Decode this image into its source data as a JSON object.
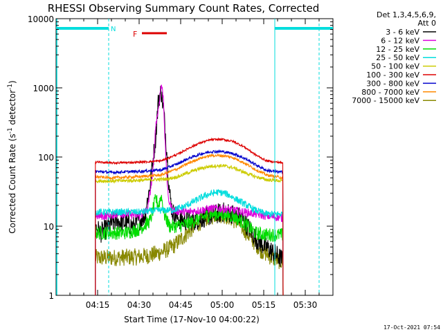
{
  "chart_data": {
    "type": "line",
    "title": "RHESSI Observing Summary Count Rates, Corrected",
    "xlabel": "Start Time (17-Nov-10 04:00:22)",
    "ylabel": "Corrected Count Rate (s^-1 detector^-1)",
    "ylabel_parts": {
      "main": "Corrected Count Rate (s",
      "exp1": "-1",
      "mid": " detector",
      "exp2": "-1",
      "end": ")"
    },
    "yscale": "log",
    "ylim": [
      1,
      10000
    ],
    "xlim_minutes": [
      0,
      100
    ],
    "x_ticks": [
      {
        "label": "04:15",
        "m": 15
      },
      {
        "label": "04:30",
        "m": 30
      },
      {
        "label": "04:45",
        "m": 45
      },
      {
        "label": "05:00",
        "m": 60
      },
      {
        "label": "05:15",
        "m": 75
      },
      {
        "label": "05:30",
        "m": 90
      }
    ],
    "y_ticks": [
      {
        "label": "1",
        "v": 1
      },
      {
        "label": "10",
        "v": 10
      },
      {
        "label": "100",
        "v": 100
      },
      {
        "label": "1000",
        "v": 1000
      },
      {
        "label": "10000",
        "v": 10000
      }
    ],
    "legend": {
      "header1": "Det 1,3,4,5,6,9,",
      "header2": "Att 0",
      "entries": [
        {
          "label": "3 - 6 keV",
          "color": "#000000"
        },
        {
          "label": "6 - 12 keV",
          "color": "#dd00dd"
        },
        {
          "label": "12 - 25 keV",
          "color": "#00dd00"
        },
        {
          "label": "25 - 50 keV",
          "color": "#00dddd"
        },
        {
          "label": "50 - 100 keV",
          "color": "#cccc00"
        },
        {
          "label": "100 - 300 keV",
          "color": "#dd0000"
        },
        {
          "label": "300 - 800 keV",
          "color": "#0000cc"
        },
        {
          "label": "800 - 7000 keV",
          "color": "#ff8800"
        },
        {
          "label": "7000 - 15000 keV",
          "color": "#888800"
        }
      ]
    },
    "annotations": {
      "night_label": "N",
      "flare_label": "F",
      "flare_color": "#dd0000",
      "night_color": "#00dddd",
      "night_bars_minutes": [
        [
          0,
          19
        ],
        [
          79,
          100
        ]
      ],
      "night_lines_minutes": [
        19,
        79,
        95
      ],
      "saa_line_minutes": 0,
      "flare_bar_minutes": [
        31,
        40
      ],
      "timestamp": "17-Oct-2021 07:54"
    },
    "series": [
      {
        "name": "3 - 6 keV",
        "color": "#000000",
        "points": [
          [
            14.2,
            10
          ],
          [
            16,
            8
          ],
          [
            18,
            9
          ],
          [
            20,
            11
          ],
          [
            22,
            12
          ],
          [
            25,
            11
          ],
          [
            28,
            10
          ],
          [
            30,
            12
          ],
          [
            32,
            14
          ],
          [
            34,
            40
          ],
          [
            36,
            200
          ],
          [
            37,
            700
          ],
          [
            38,
            900
          ],
          [
            39,
            400
          ],
          [
            40,
            120
          ],
          [
            41,
            30
          ],
          [
            42,
            16
          ],
          [
            45,
            12
          ],
          [
            50,
            12
          ],
          [
            55,
            14
          ],
          [
            58,
            15
          ],
          [
            61,
            16
          ],
          [
            64,
            15
          ],
          [
            67,
            13
          ],
          [
            70,
            9
          ],
          [
            73,
            6
          ],
          [
            76,
            5
          ],
          [
            79,
            4
          ],
          [
            82,
            3.2
          ]
        ],
        "amp": 0.3
      },
      {
        "name": "6 - 12 keV",
        "color": "#dd00dd",
        "points": [
          [
            14.2,
            14
          ],
          [
            18,
            14
          ],
          [
            22,
            15
          ],
          [
            26,
            15
          ],
          [
            30,
            14
          ],
          [
            33,
            17
          ],
          [
            35,
            60
          ],
          [
            36,
            300
          ],
          [
            37,
            500
          ],
          [
            38,
            1150
          ],
          [
            38.8,
            700
          ],
          [
            39.5,
            120
          ],
          [
            40.5,
            25
          ],
          [
            42,
            17
          ],
          [
            47,
            16
          ],
          [
            52,
            17
          ],
          [
            56,
            18
          ],
          [
            60,
            18
          ],
          [
            64,
            17
          ],
          [
            68,
            16
          ],
          [
            72,
            15
          ],
          [
            76,
            14
          ],
          [
            80,
            13.5
          ],
          [
            82,
            13
          ]
        ],
        "amp": 0.12
      },
      {
        "name": "12 - 25 keV",
        "color": "#00dd00",
        "points": [
          [
            14.2,
            8
          ],
          [
            18,
            8
          ],
          [
            25,
            8
          ],
          [
            30,
            9
          ],
          [
            34,
            12
          ],
          [
            36,
            25
          ],
          [
            37,
            20
          ],
          [
            38,
            28
          ],
          [
            39,
            15
          ],
          [
            41,
            10
          ],
          [
            44,
            10
          ],
          [
            48,
            11
          ],
          [
            52,
            13
          ],
          [
            56,
            15
          ],
          [
            60,
            15
          ],
          [
            64,
            14
          ],
          [
            68,
            11
          ],
          [
            72,
            8
          ],
          [
            76,
            7.5
          ],
          [
            82,
            7.5
          ]
        ],
        "amp": 0.2
      },
      {
        "name": "25 - 50 keV",
        "color": "#00dddd",
        "points": [
          [
            14.2,
            16
          ],
          [
            20,
            16
          ],
          [
            30,
            16
          ],
          [
            38,
            17
          ],
          [
            42,
            17
          ],
          [
            46,
            19
          ],
          [
            50,
            23
          ],
          [
            54,
            28
          ],
          [
            58,
            31
          ],
          [
            61,
            30
          ],
          [
            64,
            26
          ],
          [
            68,
            21
          ],
          [
            72,
            17
          ],
          [
            76,
            15
          ],
          [
            82,
            15
          ]
        ],
        "amp": 0.1
      },
      {
        "name": "50 - 100 keV",
        "color": "#cccc00",
        "points": [
          [
            14.2,
            45
          ],
          [
            20,
            45
          ],
          [
            30,
            46
          ],
          [
            40,
            48
          ],
          [
            44,
            52
          ],
          [
            48,
            60
          ],
          [
            52,
            68
          ],
          [
            56,
            74
          ],
          [
            60,
            75
          ],
          [
            64,
            70
          ],
          [
            68,
            60
          ],
          [
            72,
            52
          ],
          [
            76,
            47
          ],
          [
            82,
            45
          ]
        ],
        "amp": 0.05
      },
      {
        "name": "100 - 300 keV",
        "color": "#dd0000",
        "points": [
          [
            14.2,
            85
          ],
          [
            20,
            82
          ],
          [
            30,
            84
          ],
          [
            38,
            88
          ],
          [
            44,
            110
          ],
          [
            48,
            135
          ],
          [
            52,
            160
          ],
          [
            56,
            178
          ],
          [
            60,
            180
          ],
          [
            64,
            168
          ],
          [
            68,
            140
          ],
          [
            72,
            108
          ],
          [
            76,
            88
          ],
          [
            82,
            82
          ]
        ],
        "amp": 0.03
      },
      {
        "name": "300 - 800 keV",
        "color": "#0000cc",
        "points": [
          [
            14.2,
            62
          ],
          [
            20,
            60
          ],
          [
            30,
            62
          ],
          [
            38,
            65
          ],
          [
            44,
            80
          ],
          [
            48,
            96
          ],
          [
            52,
            110
          ],
          [
            56,
            120
          ],
          [
            60,
            120
          ],
          [
            64,
            112
          ],
          [
            68,
            96
          ],
          [
            72,
            78
          ],
          [
            76,
            64
          ],
          [
            82,
            60
          ]
        ],
        "amp": 0.04
      },
      {
        "name": "800 - 7000 keV",
        "color": "#ff8800",
        "points": [
          [
            14.2,
            52
          ],
          [
            20,
            50
          ],
          [
            30,
            52
          ],
          [
            38,
            55
          ],
          [
            44,
            68
          ],
          [
            48,
            82
          ],
          [
            52,
            96
          ],
          [
            56,
            105
          ],
          [
            60,
            105
          ],
          [
            64,
            98
          ],
          [
            68,
            82
          ],
          [
            72,
            66
          ],
          [
            76,
            55
          ],
          [
            82,
            50
          ]
        ],
        "amp": 0.04
      },
      {
        "name": "7000 - 15000 keV",
        "color": "#888800",
        "points": [
          [
            14.2,
            3.5
          ],
          [
            20,
            3.5
          ],
          [
            30,
            3.6
          ],
          [
            34,
            3.8
          ],
          [
            38,
            4.2
          ],
          [
            42,
            5
          ],
          [
            46,
            7
          ],
          [
            50,
            10
          ],
          [
            54,
            13
          ],
          [
            58,
            15
          ],
          [
            62,
            14
          ],
          [
            66,
            11
          ],
          [
            70,
            7
          ],
          [
            74,
            4.5
          ],
          [
            78,
            3.5
          ],
          [
            82,
            3
          ]
        ],
        "amp": 0.25
      }
    ]
  }
}
